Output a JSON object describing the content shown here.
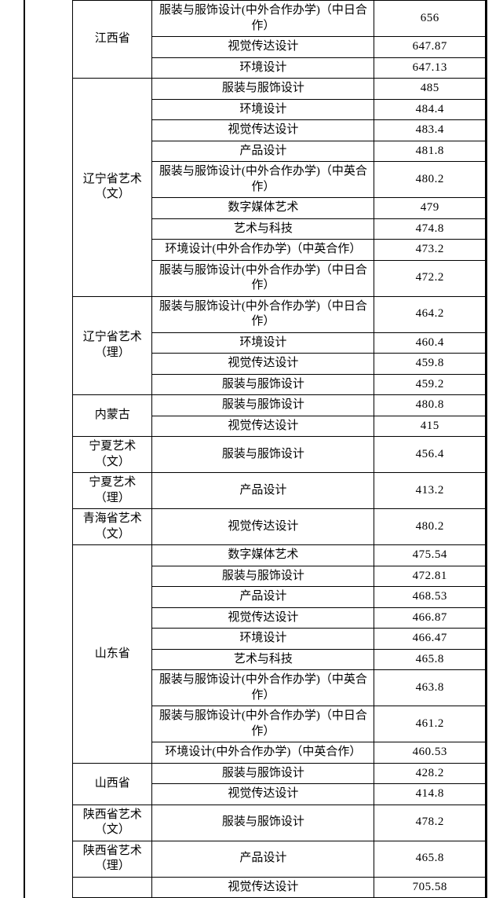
{
  "colors": {
    "border": "#000000",
    "background": "#ffffff",
    "text": "#000000"
  },
  "fontSize": 15,
  "rows": [
    {
      "province": "江西省",
      "rowspan": 3,
      "major": "服装与服饰设计(中外合作办学)（中日合作）",
      "score": "656"
    },
    {
      "major": "视觉传达设计",
      "score": "647.87"
    },
    {
      "major": "环境设计",
      "score": "647.13"
    },
    {
      "province": "辽宁省艺术（文）",
      "rowspan": 9,
      "major": "服装与服饰设计",
      "score": "485"
    },
    {
      "major": "环境设计",
      "score": "484.4"
    },
    {
      "major": "视觉传达设计",
      "score": "483.4"
    },
    {
      "major": "产品设计",
      "score": "481.8"
    },
    {
      "major": "服装与服饰设计(中外合作办学)（中英合作）",
      "score": "480.2"
    },
    {
      "major": "数字媒体艺术",
      "score": "479"
    },
    {
      "major": "艺术与科技",
      "score": "474.8"
    },
    {
      "major": "环境设计(中外合作办学)（中英合作）",
      "score": "473.2"
    },
    {
      "major": "服装与服饰设计(中外合作办学)（中日合作）",
      "score": "472.2"
    },
    {
      "province": "辽宁省艺术（理）",
      "rowspan": 4,
      "major": "服装与服饰设计(中外合作办学)（中日合作）",
      "score": "464.2"
    },
    {
      "major": "环境设计",
      "score": "460.4"
    },
    {
      "major": "视觉传达设计",
      "score": "459.8"
    },
    {
      "major": "服装与服饰设计",
      "score": "459.2"
    },
    {
      "province": "内蒙古",
      "rowspan": 2,
      "major": "服装与服饰设计",
      "score": "480.8"
    },
    {
      "major": "视觉传达设计",
      "score": "415"
    },
    {
      "province": "宁夏艺术（文）",
      "rowspan": 1,
      "major": "服装与服饰设计",
      "score": "456.4"
    },
    {
      "province": "宁夏艺术（理）",
      "rowspan": 1,
      "major": "产品设计",
      "score": "413.2"
    },
    {
      "province": "青海省艺术（文）",
      "rowspan": 1,
      "major": "视觉传达设计",
      "score": "480.2"
    },
    {
      "province": "山东省",
      "rowspan": 9,
      "major": "数字媒体艺术",
      "score": "475.54"
    },
    {
      "major": "服装与服饰设计",
      "score": "472.81"
    },
    {
      "major": "产品设计",
      "score": "468.53"
    },
    {
      "major": "视觉传达设计",
      "score": "466.87"
    },
    {
      "major": "环境设计",
      "score": "466.47"
    },
    {
      "major": "艺术与科技",
      "score": "465.8"
    },
    {
      "major": "服装与服饰设计(中外合作办学)（中英合作）",
      "score": "463.8"
    },
    {
      "major": "服装与服饰设计(中外合作办学)（中日合作）",
      "score": "461.2"
    },
    {
      "major": "环境设计(中外合作办学)（中英合作）",
      "score": "460.53"
    },
    {
      "province": "山西省",
      "rowspan": 2,
      "major": "服装与服饰设计",
      "score": "428.2"
    },
    {
      "major": "视觉传达设计",
      "score": "414.8"
    },
    {
      "province": "陕西省艺术（文）",
      "rowspan": 1,
      "major": "服装与服饰设计",
      "score": "478.2"
    },
    {
      "province": "陕西省艺术（理）",
      "rowspan": 1,
      "major": "产品设计",
      "score": "465.8"
    },
    {
      "province": "",
      "rowspan": 1,
      "major": "视觉传达设计",
      "score": "705.58"
    }
  ],
  "totalRows": 35
}
